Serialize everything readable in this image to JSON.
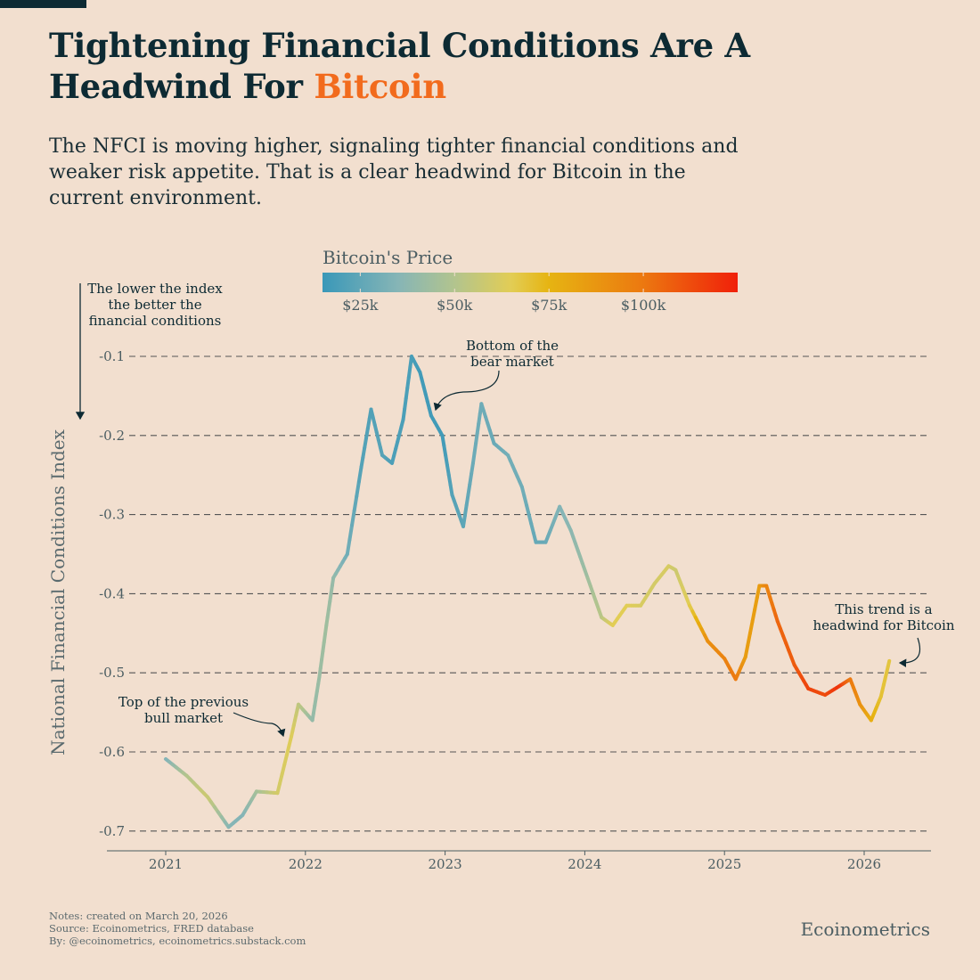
{
  "header": {
    "title_line1": "Tightening Financial Conditions Are A",
    "title_line2_prefix": "Headwind For ",
    "title_highlight": "Bitcoin",
    "subtitle": "The NFCI is moving higher, signaling tighter financial conditions and weaker risk appetite. That is a clear headwind for Bitcoin in the current environment."
  },
  "colors": {
    "background": "#f2dfcf",
    "title": "#0d2a33",
    "highlight": "#f26b1d",
    "grid": "#555555"
  },
  "chart_data": {
    "type": "line",
    "ylabel": "National Financial Conditions Index",
    "xlabel": "",
    "ylim": [
      -0.72,
      -0.08
    ],
    "xlim": [
      2020.75,
      2026.48
    ],
    "yticks": [
      -0.1,
      -0.2,
      -0.3,
      -0.4,
      -0.5,
      -0.6,
      -0.7
    ],
    "ytick_labels": [
      "-0.1",
      "-0.2",
      "-0.3",
      "-0.4",
      "-0.5",
      "-0.6",
      "-0.7"
    ],
    "xticks": [
      2021,
      2022,
      2023,
      2024,
      2025,
      2026
    ],
    "xtick_labels": [
      "2021",
      "2022",
      "2023",
      "2024",
      "2025",
      "2026"
    ],
    "grid": "horizontal dashed",
    "colorbar": {
      "title": "Bitcoin's Price",
      "range": [
        15000,
        125000
      ],
      "ticks": [
        25000,
        50000,
        75000,
        100000
      ],
      "tick_labels": [
        "$25k",
        "$50k",
        "$75k",
        "$100k"
      ],
      "stops": [
        [
          15000,
          "#3a98b8"
        ],
        [
          35000,
          "#86b5b6"
        ],
        [
          50000,
          "#b2c48e"
        ],
        [
          65000,
          "#e2cd55"
        ],
        [
          75000,
          "#e6b412"
        ],
        [
          100000,
          "#ec7810"
        ],
        [
          125000,
          "#f0200a"
        ]
      ]
    },
    "series": [
      {
        "name": "NFCI",
        "x": [
          2021.0,
          2021.15,
          2021.3,
          2021.45,
          2021.55,
          2021.65,
          2021.8,
          2021.9,
          2021.95,
          2022.05,
          2022.1,
          2022.15,
          2022.2,
          2022.3,
          2022.4,
          2022.47,
          2022.55,
          2022.62,
          2022.7,
          2022.76,
          2022.82,
          2022.9,
          2022.98,
          2023.05,
          2023.13,
          2023.2,
          2023.26,
          2023.35,
          2023.45,
          2023.55,
          2023.65,
          2023.72,
          2023.82,
          2023.9,
          2024.0,
          2024.12,
          2024.2,
          2024.3,
          2024.4,
          2024.5,
          2024.6,
          2024.65,
          2024.75,
          2024.88,
          2025.0,
          2025.08,
          2025.15,
          2025.25,
          2025.3,
          2025.38,
          2025.5,
          2025.6,
          2025.72,
          2025.82,
          2025.9,
          2025.97,
          2026.05,
          2026.12,
          2026.18
        ],
        "y": [
          -0.609,
          -0.63,
          -0.657,
          -0.695,
          -0.68,
          -0.65,
          -0.652,
          -0.58,
          -0.54,
          -0.56,
          -0.505,
          -0.44,
          -0.38,
          -0.35,
          -0.24,
          -0.167,
          -0.225,
          -0.235,
          -0.18,
          -0.1,
          -0.12,
          -0.175,
          -0.2,
          -0.275,
          -0.315,
          -0.235,
          -0.16,
          -0.21,
          -0.225,
          -0.265,
          -0.335,
          -0.335,
          -0.29,
          -0.32,
          -0.37,
          -0.43,
          -0.44,
          -0.415,
          -0.415,
          -0.387,
          -0.365,
          -0.37,
          -0.415,
          -0.46,
          -0.482,
          -0.508,
          -0.48,
          -0.39,
          -0.39,
          -0.435,
          -0.49,
          -0.52,
          -0.528,
          -0.517,
          -0.508,
          -0.54,
          -0.56,
          -0.53,
          -0.485
        ],
        "price": [
          33000,
          50000,
          58000,
          36000,
          34000,
          45000,
          60000,
          64000,
          55000,
          40000,
          42000,
          44000,
          40000,
          30000,
          22000,
          21000,
          23000,
          20000,
          19500,
          19500,
          17000,
          17000,
          16800,
          22000,
          24000,
          28000,
          29000,
          27000,
          30000,
          29500,
          26500,
          27000,
          34000,
          37000,
          42000,
          52000,
          65000,
          65000,
          62000,
          60000,
          62000,
          58000,
          65000,
          90000,
          95000,
          100000,
          85000,
          84000,
          94000,
          105000,
          108000,
          115000,
          112000,
          120000,
          100000,
          90000,
          78000,
          70000,
          68000
        ]
      }
    ]
  },
  "annotations": {
    "index_note": [
      "The lower the index",
      "the better the",
      "financial conditions"
    ],
    "bottom": [
      "Bottom of the",
      "bear market"
    ],
    "top": [
      "Top of the previous",
      "bull market"
    ],
    "trend": [
      "This trend is a",
      "headwind for Bitcoin"
    ]
  },
  "footer": {
    "notes": "Notes: created on March 20, 2026",
    "source": "Source: Ecoinometrics, FRED database",
    "by": "By: @ecoinometrics, ecoinometrics.substack.com",
    "brand": "Ecoinometrics"
  }
}
